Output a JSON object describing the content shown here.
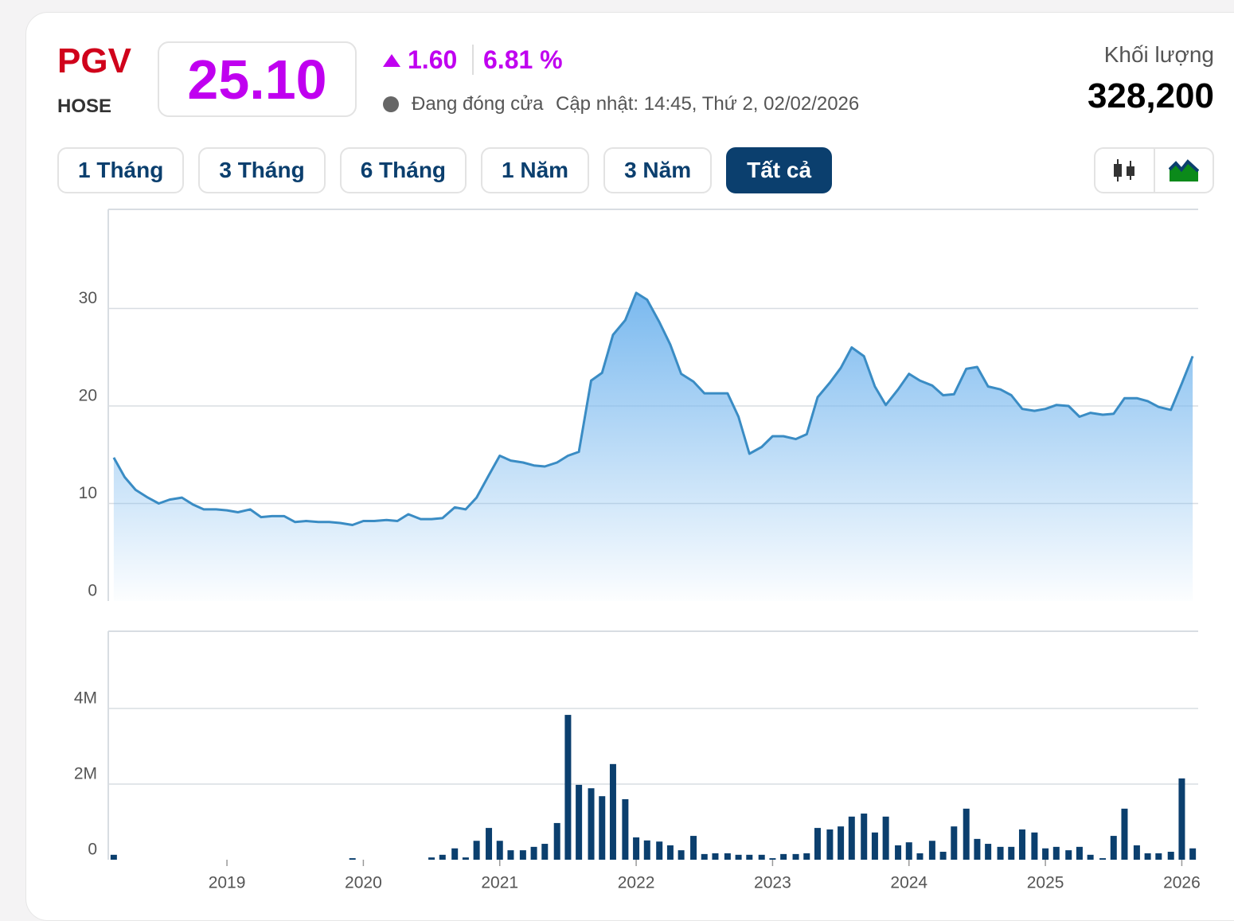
{
  "header": {
    "symbol": "PGV",
    "exchange": "HOSE",
    "price": "25.10",
    "change": "1.60",
    "change_percent": "6.81 %",
    "status": "Đang đóng cửa",
    "updated": "Cập nhật: 14:45, Thứ 2, 02/02/2026",
    "volume_label": "Khối lượng",
    "volume": "328,200"
  },
  "ranges": {
    "buttons": [
      "1 Tháng",
      "3 Tháng",
      "6 Tháng",
      "1 Năm",
      "3 Năm",
      "Tất cả"
    ],
    "active": 5
  },
  "chart_data": [
    {
      "type": "area",
      "x": [
        2018.17,
        2018.25,
        2018.33,
        2018.42,
        2018.5,
        2018.58,
        2018.67,
        2018.75,
        2018.83,
        2018.92,
        2019.0,
        2019.08,
        2019.17,
        2019.25,
        2019.33,
        2019.42,
        2019.5,
        2019.58,
        2019.67,
        2019.75,
        2019.83,
        2019.92,
        2020.0,
        2020.08,
        2020.17,
        2020.25,
        2020.33,
        2020.42,
        2020.5,
        2020.58,
        2020.67,
        2020.75,
        2020.83,
        2020.92,
        2021.0,
        2021.08,
        2021.17,
        2021.25,
        2021.33,
        2021.42,
        2021.5,
        2021.58,
        2021.67,
        2021.75,
        2021.83,
        2021.92,
        2022.0,
        2022.08,
        2022.17,
        2022.25,
        2022.33,
        2022.42,
        2022.5,
        2022.58,
        2022.67,
        2022.75,
        2022.83,
        2022.92,
        2023.0,
        2023.08,
        2023.17,
        2023.25,
        2023.33,
        2023.42,
        2023.5,
        2023.58,
        2023.67,
        2023.75,
        2023.83,
        2023.92,
        2024.0,
        2024.08,
        2024.17,
        2024.25,
        2024.33,
        2024.42,
        2024.5,
        2024.58,
        2024.67,
        2024.75,
        2024.83,
        2024.92,
        2025.0,
        2025.08,
        2025.17,
        2025.25,
        2025.33,
        2025.42,
        2025.5,
        2025.58,
        2025.67,
        2025.75,
        2025.83,
        2025.92,
        2026.0,
        2026.08
      ],
      "series": [
        {
          "color": "#3a8cc4",
          "fill": "#7ab9ef",
          "values": [
            14.7,
            12.7,
            11.4,
            10.6,
            10.0,
            10.4,
            10.6,
            9.9,
            9.4,
            9.4,
            9.3,
            9.1,
            9.4,
            8.6,
            8.7,
            8.7,
            8.1,
            8.2,
            8.1,
            8.1,
            8.0,
            7.8,
            8.2,
            8.2,
            8.3,
            8.2,
            8.9,
            8.4,
            8.4,
            8.5,
            9.6,
            9.4,
            10.6,
            12.9,
            14.9,
            14.4,
            14.2,
            13.9,
            13.8,
            14.2,
            14.9,
            15.3,
            22.6,
            23.4,
            27.3,
            28.8,
            31.6,
            30.9,
            28.6,
            26.3,
            23.3,
            22.5,
            21.3,
            21.3,
            21.3,
            18.9,
            15.1,
            15.8,
            16.9,
            16.9,
            16.6,
            17.1,
            20.9,
            22.4,
            23.9,
            26.0,
            25.1,
            22.0,
            20.1,
            21.7,
            23.3,
            22.6,
            22.1,
            21.1,
            21.2,
            23.8,
            24.0,
            22.0,
            21.7,
            21.1,
            19.7,
            19.5,
            19.7,
            20.1,
            20.0,
            18.9,
            19.3,
            19.1,
            19.2,
            20.8,
            20.8,
            20.5,
            19.9,
            19.6,
            22.3,
            25.1
          ]
        }
      ],
      "xlim": [
        2018.13,
        2026.12
      ],
      "ylim": [
        0,
        40
      ],
      "yticks": [
        0,
        10,
        20,
        30
      ],
      "grid": true
    },
    {
      "type": "bar",
      "x": [
        2018.17,
        2018.25,
        2018.33,
        2018.42,
        2018.5,
        2018.58,
        2018.67,
        2018.75,
        2018.83,
        2018.92,
        2019.0,
        2019.08,
        2019.17,
        2019.25,
        2019.33,
        2019.42,
        2019.5,
        2019.58,
        2019.67,
        2019.75,
        2019.83,
        2019.92,
        2020.0,
        2020.08,
        2020.17,
        2020.25,
        2020.33,
        2020.42,
        2020.5,
        2020.58,
        2020.67,
        2020.75,
        2020.83,
        2020.92,
        2021.0,
        2021.08,
        2021.17,
        2021.25,
        2021.33,
        2021.42,
        2021.5,
        2021.58,
        2021.67,
        2021.75,
        2021.83,
        2021.92,
        2022.0,
        2022.08,
        2022.17,
        2022.25,
        2022.33,
        2022.42,
        2022.5,
        2022.58,
        2022.67,
        2022.75,
        2022.83,
        2022.92,
        2023.0,
        2023.08,
        2023.17,
        2023.25,
        2023.33,
        2023.42,
        2023.5,
        2023.58,
        2023.67,
        2023.75,
        2023.83,
        2023.92,
        2024.0,
        2024.08,
        2024.17,
        2024.25,
        2024.33,
        2024.42,
        2024.5,
        2024.58,
        2024.67,
        2024.75,
        2024.83,
        2024.92,
        2025.0,
        2025.08,
        2025.17,
        2025.25,
        2025.33,
        2025.42,
        2025.5,
        2025.58,
        2025.67,
        2025.75,
        2025.83,
        2025.92,
        2026.0,
        2026.08
      ],
      "series": [
        {
          "color": "#0b3f6e",
          "values": [
            130000,
            0,
            0,
            0,
            0,
            0,
            0,
            0,
            0,
            0,
            0,
            0,
            0,
            0,
            0,
            0,
            0,
            0,
            0,
            0,
            0,
            40000,
            0,
            0,
            0,
            0,
            0,
            0,
            60000,
            130000,
            300000,
            60000,
            500000,
            840000,
            500000,
            250000,
            250000,
            340000,
            420000,
            970000,
            3830000,
            1980000,
            1890000,
            1680000,
            2530000,
            1600000,
            590000,
            510000,
            480000,
            380000,
            250000,
            630000,
            150000,
            170000,
            170000,
            130000,
            130000,
            130000,
            40000,
            150000,
            150000,
            170000,
            840000,
            800000,
            880000,
            1140000,
            1220000,
            720000,
            1140000,
            380000,
            460000,
            170000,
            500000,
            210000,
            880000,
            1350000,
            550000,
            420000,
            340000,
            340000,
            800000,
            720000,
            300000,
            340000,
            250000,
            340000,
            130000,
            40000,
            630000,
            1350000,
            380000,
            170000,
            170000,
            210000,
            2150000,
            300000
          ]
        }
      ],
      "xlim": [
        2018.13,
        2026.12
      ],
      "xticks": [
        2019,
        2020,
        2021,
        2022,
        2023,
        2024,
        2025,
        2026
      ],
      "ylim": [
        0,
        6000000
      ],
      "yticks": [
        {
          "value": 0,
          "label": "0"
        },
        {
          "value": 2000000,
          "label": "2M"
        },
        {
          "value": 4000000,
          "label": "4M"
        }
      ],
      "grid": true
    }
  ]
}
